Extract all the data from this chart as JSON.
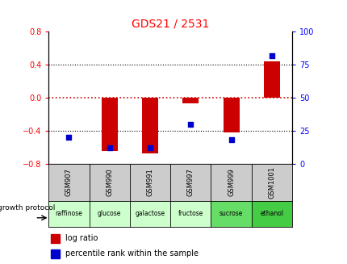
{
  "title": "GDS21 / 2531",
  "samples": [
    "GSM907",
    "GSM990",
    "GSM991",
    "GSM997",
    "GSM999",
    "GSM1001"
  ],
  "protocols": [
    "raffinose",
    "glucose",
    "galactose",
    "fructose",
    "sucrose",
    "ethanol"
  ],
  "log_ratios": [
    0.0,
    -0.65,
    -0.68,
    -0.07,
    -0.42,
    0.44
  ],
  "percentile_ranks": [
    20,
    12,
    12,
    30,
    18,
    82
  ],
  "bar_color": "#cc0000",
  "dot_color": "#0000cc",
  "ylim_left": [
    -0.8,
    0.8
  ],
  "ylim_right": [
    0,
    100
  ],
  "yticks_left": [
    -0.8,
    -0.4,
    0,
    0.4,
    0.8
  ],
  "yticks_right": [
    0,
    25,
    50,
    75,
    100
  ],
  "hline_color": "#cc0000",
  "dotline_color": "#000000",
  "protocol_colors": [
    "#ccffcc",
    "#ccffcc",
    "#ccffcc",
    "#ccffcc",
    "#66dd66",
    "#44cc44"
  ],
  "gsm_bg_color": "#cccccc",
  "growth_protocol_label": "growth protocol",
  "legend_log_ratio": "log ratio",
  "legend_percentile": "percentile rank within the sample",
  "bar_width": 0.4
}
